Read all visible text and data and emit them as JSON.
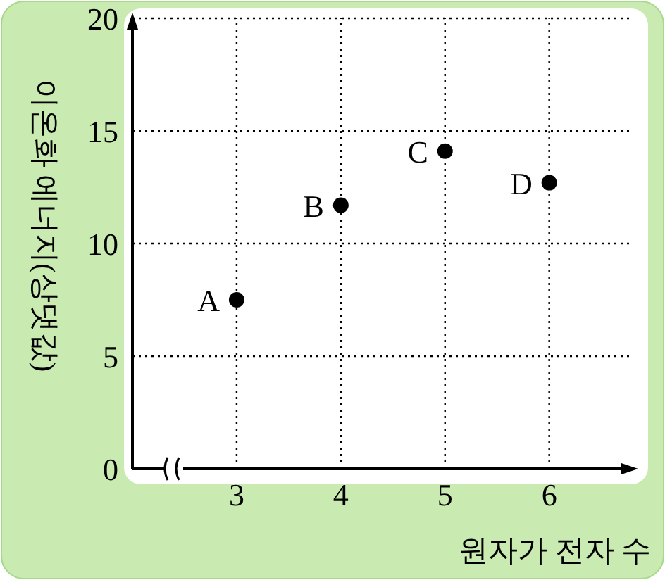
{
  "chart_data": {
    "type": "scatter",
    "xlabel": "원자가 전자 수",
    "ylabel": "이온화 에너지(상댓값)",
    "x": [
      3,
      4,
      5,
      6
    ],
    "values": [
      7.5,
      11.7,
      14.1,
      12.7
    ],
    "color": "#000000",
    "marker": "circle",
    "grid": true,
    "xlim": [
      2,
      6.8
    ],
    "xticks": [
      3,
      4,
      5,
      6
    ],
    "ylim": [
      0,
      20
    ],
    "yticks": [
      0,
      5,
      10,
      15,
      20
    ],
    "annotations": [
      {
        "text": "A",
        "x": 3,
        "y": 7.5
      },
      {
        "text": "B",
        "x": 4,
        "y": 11.7
      },
      {
        "text": "C",
        "x": 5,
        "y": 14.1
      },
      {
        "text": "D",
        "x": 6,
        "y": 12.7
      }
    ]
  }
}
